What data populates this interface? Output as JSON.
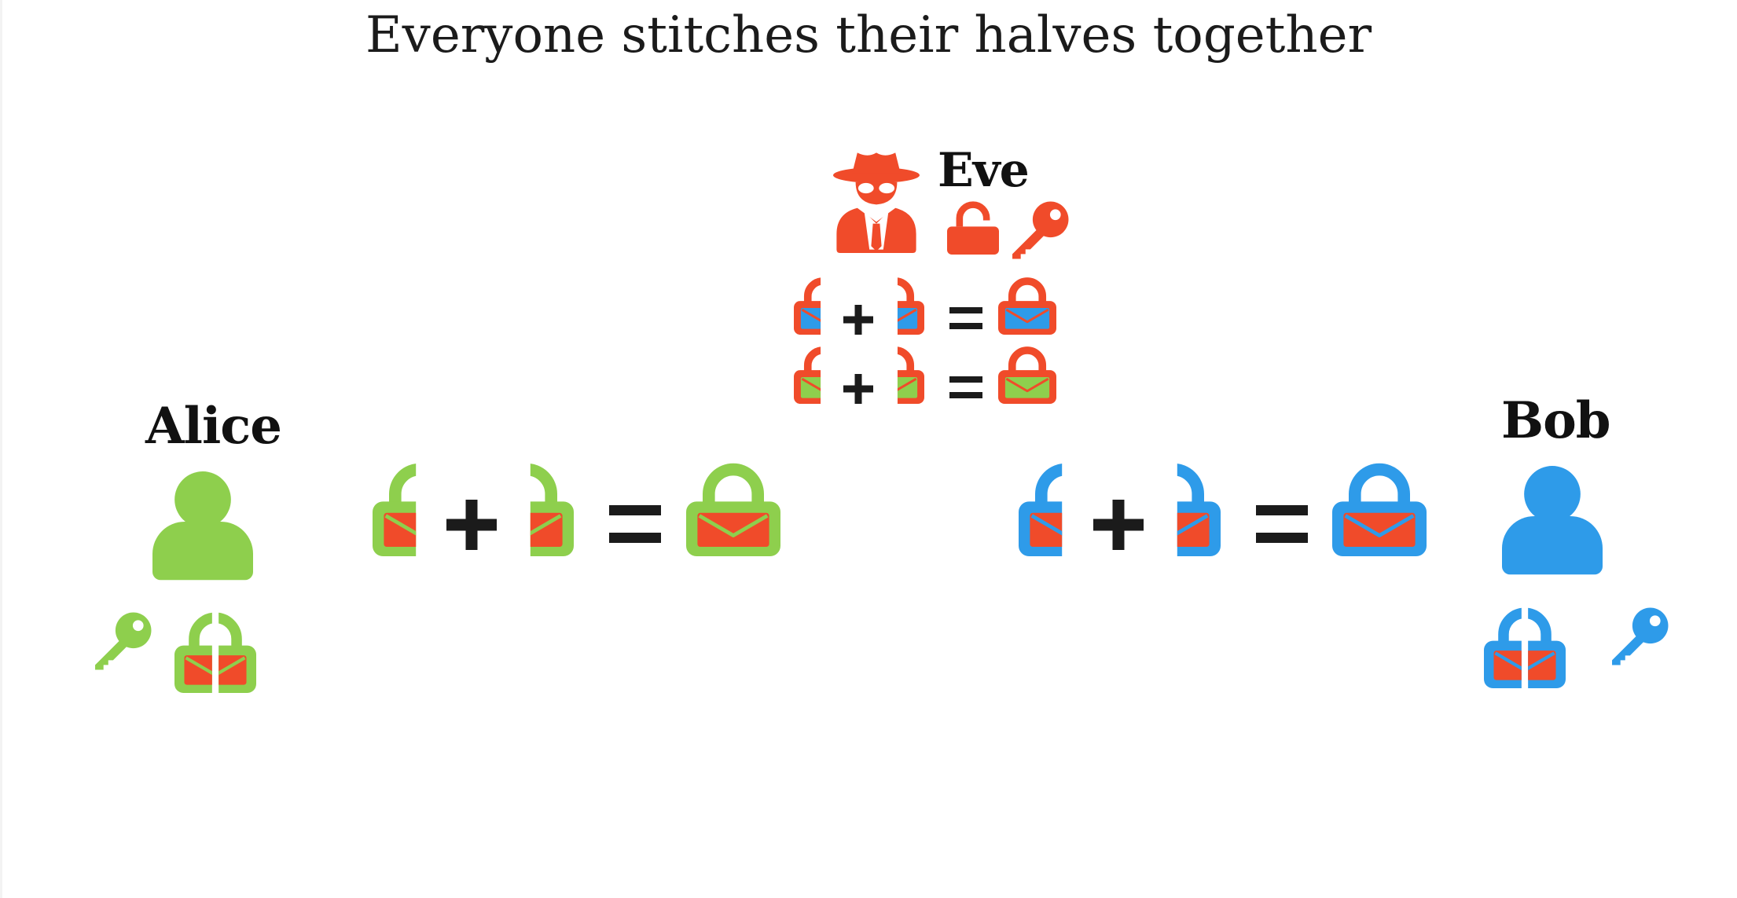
{
  "title": "Everyone stitches their halves together",
  "colors": {
    "alice": "#8ecf4d",
    "bob": "#2e9be9",
    "eve": "#f04b2a",
    "ink": "#1b1b1b"
  },
  "alice": {
    "name": "Alice",
    "icons": [
      "user-icon",
      "key-icon",
      "split-padlock-icon"
    ],
    "equation": {
      "left": "left-half-padlock-icon",
      "op": "+",
      "right": "right-half-padlock-icon",
      "eq": "=",
      "result": "locked-envelope-padlock-icon"
    }
  },
  "bob": {
    "name": "Bob",
    "icons": [
      "user-icon",
      "split-padlock-icon",
      "key-icon"
    ],
    "equation": {
      "left": "left-half-padlock-icon",
      "op": "+",
      "right": "right-half-padlock-icon",
      "eq": "=",
      "result": "locked-envelope-padlock-icon"
    }
  },
  "eve": {
    "name": "Eve",
    "icons": [
      "spy-icon",
      "open-padlock-icon",
      "key-icon"
    ],
    "equations": [
      {
        "left": "left-half-padlock-icon",
        "op": "+",
        "right": "right-half-padlock-icon",
        "eq": "=",
        "result": "locked-envelope-padlock-icon",
        "envelope": "bob"
      },
      {
        "left": "left-half-padlock-icon",
        "op": "+",
        "right": "right-half-padlock-icon",
        "eq": "=",
        "result": "locked-envelope-padlock-icon",
        "envelope": "alice"
      }
    ]
  }
}
